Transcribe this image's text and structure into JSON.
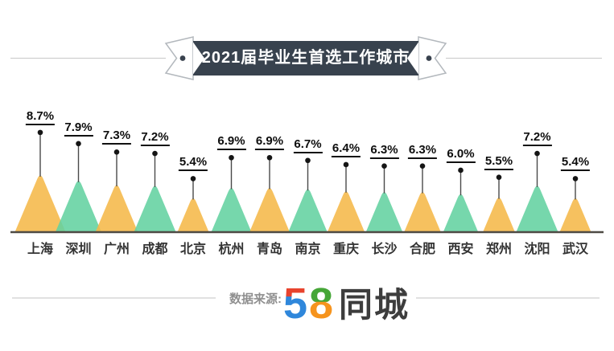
{
  "header": {
    "title": "2021届毕业生首选工作城市",
    "ribbon_color": "#38424E",
    "line_color": "#CFCFCF"
  },
  "chart_data": {
    "type": "bar",
    "style": "triangle-mountain-lollipop",
    "title": "2021届毕业生首选工作城市",
    "categories": [
      "上海",
      "深圳",
      "广州",
      "成都",
      "北京",
      "杭州",
      "青岛",
      "南京",
      "重庆",
      "长沙",
      "合肥",
      "西安",
      "郑州",
      "沈阳",
      "武汉"
    ],
    "values": [
      8.7,
      7.9,
      7.3,
      7.2,
      5.4,
      6.9,
      6.9,
      6.7,
      6.4,
      6.3,
      6.3,
      6.0,
      5.5,
      7.2,
      5.4
    ],
    "unit": "%",
    "xlabel": "",
    "ylabel": "",
    "ylim": [
      0,
      9
    ],
    "grid": false,
    "legend": false,
    "colors": {
      "series": [
        "#F5B849",
        "#63D1A0"
      ],
      "baseline": "#4E4A44",
      "stick": "#4A4A4A",
      "dot": "#151515"
    }
  },
  "footer": {
    "source_label": "数据来源:",
    "logo": {
      "digit_5": "5",
      "digit_8": "8",
      "name": "同城",
      "colors": {
        "five_top": "#E8432D",
        "five_body": "#2F87DB",
        "eight_top": "#45A637",
        "eight_bottom": "#F6941E",
        "name_color": "#3D3D3D"
      }
    },
    "line_color": "#CFCFCF"
  }
}
